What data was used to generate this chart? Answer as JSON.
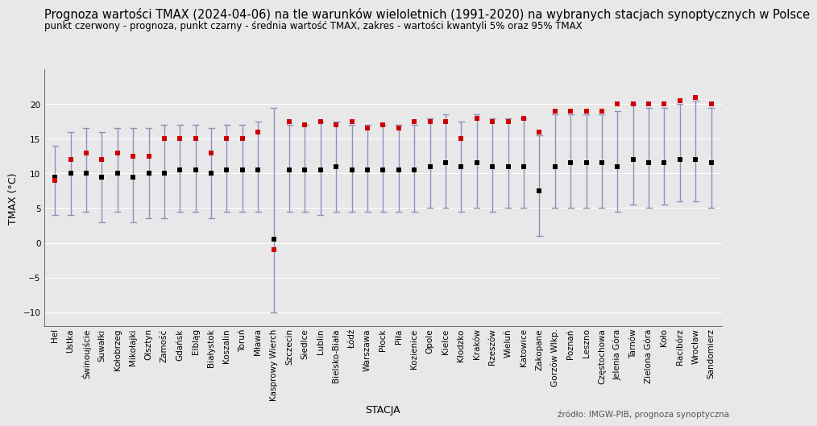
{
  "title": "Prognoza wartości TMAX (2024-04-06) na tle warunków wieloletnich (1991-2020) na wybranych stacjach synoptycznych w Polsce",
  "subtitle": "punkt czerwony - prognoza, punkt czarny - średnia wartość TMAX, zakres - wartości kwantyli 5% oraz 95% TMAX",
  "xlabel": "STACJA",
  "ylabel": "TMAX (°C)",
  "source": "źródło: IMGW-PIB, prognoza synoptyczna",
  "stations": [
    "Hel",
    "Ustka",
    "Świnoujście",
    "Suwałki",
    "Kołobrzeg",
    "Mikołajki",
    "Olsztyn",
    "Zamość",
    "Gdańsk",
    "Elbląg",
    "Białystok",
    "Koszalin",
    "Toruń",
    "Mława",
    "Kasprowy Wierch",
    "Szczecin",
    "Siedlce",
    "Lublin",
    "Bielsko-Biała",
    "Łódź",
    "Warszawa",
    "Płock",
    "Piła",
    "Kozienice",
    "Opole",
    "Kielce",
    "Kłodzko",
    "Kraków",
    "Rzeszów",
    "Wieluń",
    "Katowice",
    "Zakopane",
    "Gorzów Wlkp.",
    "Poznań",
    "Leszno",
    "Częstochowa",
    "Jelenia Góra",
    "Tarnów",
    "Zielona Góra",
    "Koło",
    "Racibórz",
    "Wrocław",
    "Sandomierz"
  ],
  "tmax_forecast": [
    9.0,
    12.0,
    13.0,
    12.0,
    13.0,
    12.5,
    12.5,
    15.0,
    15.0,
    15.0,
    13.0,
    15.0,
    15.0,
    16.0,
    -1.0,
    17.5,
    17.0,
    17.5,
    17.0,
    17.5,
    16.5,
    17.0,
    16.5,
    17.5,
    17.5,
    17.5,
    15.0,
    18.0,
    17.5,
    17.5,
    18.0,
    16.0,
    19.0,
    19.0,
    19.0,
    19.0,
    20.0,
    20.0,
    20.0,
    20.0,
    20.5,
    21.0,
    20.0
  ],
  "tmax_mean": [
    9.5,
    10.0,
    10.0,
    9.5,
    10.0,
    9.5,
    10.0,
    10.0,
    10.5,
    10.5,
    10.0,
    10.5,
    10.5,
    10.5,
    0.5,
    10.5,
    10.5,
    10.5,
    11.0,
    10.5,
    10.5,
    10.5,
    10.5,
    10.5,
    11.0,
    11.5,
    11.0,
    11.5,
    11.0,
    11.0,
    11.0,
    7.5,
    11.0,
    11.5,
    11.5,
    11.5,
    11.0,
    12.0,
    11.5,
    11.5,
    12.0,
    12.0,
    11.5
  ],
  "tmax_q05": [
    4.0,
    4.0,
    4.5,
    3.0,
    4.5,
    3.0,
    3.5,
    3.5,
    4.5,
    4.5,
    3.5,
    4.5,
    4.5,
    4.5,
    -10.0,
    4.5,
    4.5,
    4.0,
    4.5,
    4.5,
    4.5,
    4.5,
    4.5,
    4.5,
    5.0,
    5.0,
    4.5,
    5.0,
    4.5,
    5.0,
    5.0,
    1.0,
    5.0,
    5.0,
    5.0,
    5.0,
    4.5,
    5.5,
    5.0,
    5.5,
    6.0,
    6.0,
    5.0
  ],
  "tmax_q95": [
    14.0,
    16.0,
    16.5,
    16.0,
    16.5,
    16.5,
    16.5,
    17.0,
    17.0,
    17.0,
    16.5,
    17.0,
    17.0,
    17.5,
    19.5,
    17.0,
    17.0,
    17.5,
    17.5,
    17.0,
    17.0,
    17.0,
    17.0,
    17.0,
    18.0,
    18.5,
    17.5,
    18.5,
    18.0,
    18.0,
    18.0,
    15.5,
    18.5,
    18.5,
    18.5,
    18.5,
    19.0,
    20.0,
    19.5,
    19.5,
    20.0,
    20.5,
    19.5
  ],
  "bg_color": "#e8e8e8",
  "plot_bg_color": "#e8e8e8",
  "grid_color": "#ffffff",
  "errorbar_color": "#9090bb",
  "mean_color": "#000000",
  "forecast_color": "#cc0000",
  "ylim": [
    -12,
    25
  ],
  "yticks": [
    -10,
    -5,
    0,
    5,
    10,
    15,
    20
  ],
  "title_fontsize": 10.5,
  "subtitle_fontsize": 8.5,
  "axis_label_fontsize": 9,
  "tick_fontsize": 7.5,
  "source_fontsize": 7.5
}
